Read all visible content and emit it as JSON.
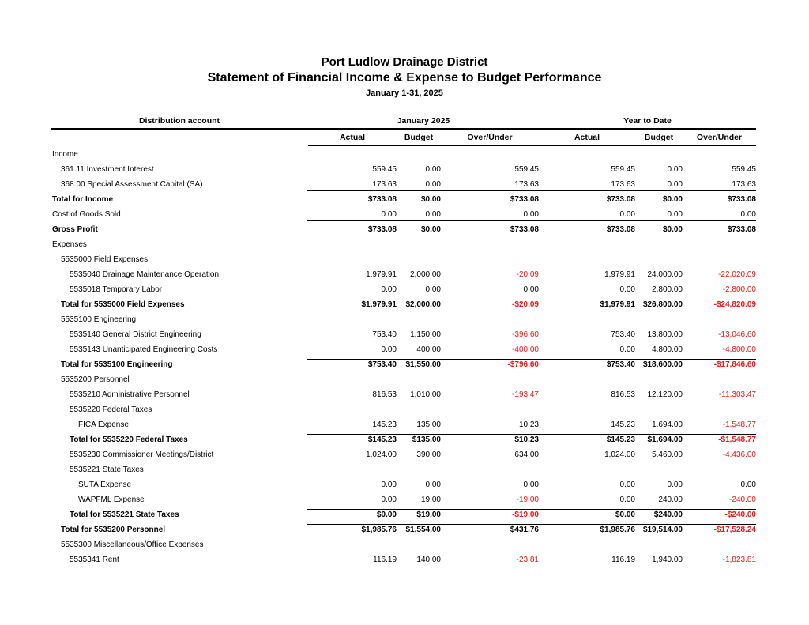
{
  "header": {
    "title": "Port Ludlow Drainage District",
    "subtitle": "Statement of Financial Income & Expense to Budget Performance",
    "date_range": "January 1-31, 2025"
  },
  "colors": {
    "text": "#000000",
    "negative": "#f01616"
  },
  "table": {
    "account_header": "Distribution account",
    "column_groups": [
      "January 2025",
      "Year to Date"
    ],
    "columns": [
      "Actual",
      "Budget",
      "Over/Under",
      "Actual",
      "Budget",
      "Over/Under"
    ],
    "rows": [
      {
        "label": "Income",
        "indent": 0,
        "bold": false,
        "total_line": false,
        "values": []
      },
      {
        "label": "361.11 Investment Interest",
        "indent": 1,
        "bold": false,
        "total_line": false,
        "values": [
          "559.45",
          "0.00",
          "559.45",
          "559.45",
          "0.00",
          "559.45"
        ]
      },
      {
        "label": "368.00 Special Assessment Capital (SA)",
        "indent": 1,
        "bold": false,
        "total_line": false,
        "values": [
          "173.63",
          "0.00",
          "173.63",
          "173.63",
          "0.00",
          "173.63"
        ]
      },
      {
        "label": "Total for Income",
        "indent": 0,
        "bold": true,
        "total_line": true,
        "values": [
          "$733.08",
          "$0.00",
          "$733.08",
          "$733.08",
          "$0.00",
          "$733.08"
        ]
      },
      {
        "label": "Cost of Goods Sold",
        "indent": 0,
        "bold": false,
        "total_line": false,
        "values": [
          "0.00",
          "0.00",
          "0.00",
          "0.00",
          "0.00",
          "0.00"
        ]
      },
      {
        "label": "Gross Profit",
        "indent": 0,
        "bold": true,
        "total_line": true,
        "values": [
          "$733.08",
          "$0.00",
          "$733.08",
          "$733.08",
          "$0.00",
          "$733.08"
        ]
      },
      {
        "label": "Expenses",
        "indent": 0,
        "bold": false,
        "total_line": false,
        "values": []
      },
      {
        "label": "5535000 Field Expenses",
        "indent": 1,
        "bold": false,
        "total_line": false,
        "values": []
      },
      {
        "label": "5535040 Drainage Maintenance Operation",
        "indent": 2,
        "bold": false,
        "total_line": false,
        "values": [
          "1,979.91",
          "2,000.00",
          "-20.09",
          "1,979.91",
          "24,000.00",
          "-22,020.09"
        ]
      },
      {
        "label": "5535018 Temporary Labor",
        "indent": 2,
        "bold": false,
        "total_line": false,
        "values": [
          "0.00",
          "0.00",
          "0.00",
          "0.00",
          "2,800.00",
          "-2,800.00"
        ]
      },
      {
        "label": "Total for 5535000 Field Expenses",
        "indent": 1,
        "bold": true,
        "total_line": true,
        "values": [
          "$1,979.91",
          "$2,000.00",
          "-$20.09",
          "$1,979.91",
          "$26,800.00",
          "-$24,820.09"
        ]
      },
      {
        "label": "5535100 Engineering",
        "indent": 1,
        "bold": false,
        "total_line": false,
        "values": []
      },
      {
        "label": "5535140 General District Engineering",
        "indent": 2,
        "bold": false,
        "total_line": false,
        "values": [
          "753.40",
          "1,150.00",
          "-396.60",
          "753.40",
          "13,800.00",
          "-13,046.60"
        ]
      },
      {
        "label": "5535143 Unanticipated Engineering Costs",
        "indent": 2,
        "bold": false,
        "total_line": false,
        "values": [
          "0.00",
          "400.00",
          "-400.00",
          "0.00",
          "4,800.00",
          "-4,800.00"
        ]
      },
      {
        "label": "Total for 5535100 Engineering",
        "indent": 1,
        "bold": true,
        "total_line": true,
        "values": [
          "$753.40",
          "$1,550.00",
          "-$796.60",
          "$753.40",
          "$18,600.00",
          "-$17,846.60"
        ]
      },
      {
        "label": "5535200 Personnel",
        "indent": 1,
        "bold": false,
        "total_line": false,
        "values": []
      },
      {
        "label": "5535210 Administrative Personnel",
        "indent": 2,
        "bold": false,
        "total_line": false,
        "values": [
          "816.53",
          "1,010.00",
          "-193.47",
          "816.53",
          "12,120.00",
          "-11,303.47"
        ]
      },
      {
        "label": "5535220 Federal Taxes",
        "indent": 2,
        "bold": false,
        "total_line": false,
        "values": []
      },
      {
        "label": "FICA Expense",
        "indent": 3,
        "bold": false,
        "total_line": false,
        "values": [
          "145.23",
          "135.00",
          "10.23",
          "145.23",
          "1,694.00",
          "-1,548.77"
        ]
      },
      {
        "label": "Total for 5535220 Federal Taxes",
        "indent": 2,
        "bold": true,
        "total_line": true,
        "values": [
          "$145.23",
          "$135.00",
          "$10.23",
          "$145.23",
          "$1,694.00",
          "-$1,548.77"
        ]
      },
      {
        "label": "5535230 Commissioner Meetings/District",
        "indent": 2,
        "bold": false,
        "total_line": false,
        "values": [
          "1,024.00",
          "390.00",
          "634.00",
          "1,024.00",
          "5,460.00",
          "-4,436.00"
        ]
      },
      {
        "label": "5535221 State Taxes",
        "indent": 2,
        "bold": false,
        "total_line": false,
        "values": []
      },
      {
        "label": "SUTA Expense",
        "indent": 3,
        "bold": false,
        "total_line": false,
        "values": [
          "0.00",
          "0.00",
          "0.00",
          "0.00",
          "0.00",
          "0.00"
        ]
      },
      {
        "label": "WAPFML Expense",
        "indent": 3,
        "bold": false,
        "total_line": false,
        "values": [
          "0.00",
          "19.00",
          "-19.00",
          "0.00",
          "240.00",
          "-240.00"
        ]
      },
      {
        "label": "Total for 5535221 State Taxes",
        "indent": 2,
        "bold": true,
        "total_line": true,
        "values": [
          "$0.00",
          "$19.00",
          "-$19.00",
          "$0.00",
          "$240.00",
          "-$240.00"
        ]
      },
      {
        "label": "Total for 5535200 Personnel",
        "indent": 1,
        "bold": true,
        "total_line": true,
        "values": [
          "$1,985.76",
          "$1,554.00",
          "$431.76",
          "$1,985.76",
          "$19,514.00",
          "-$17,528.24"
        ]
      },
      {
        "label": "5535300 Miscellaneous/Office Expenses",
        "indent": 1,
        "bold": false,
        "total_line": false,
        "values": []
      },
      {
        "label": "5535341 Rent",
        "indent": 2,
        "bold": false,
        "total_line": false,
        "values": [
          "116.19",
          "140.00",
          "-23.81",
          "116.19",
          "1,940.00",
          "-1,823.81"
        ]
      }
    ]
  }
}
